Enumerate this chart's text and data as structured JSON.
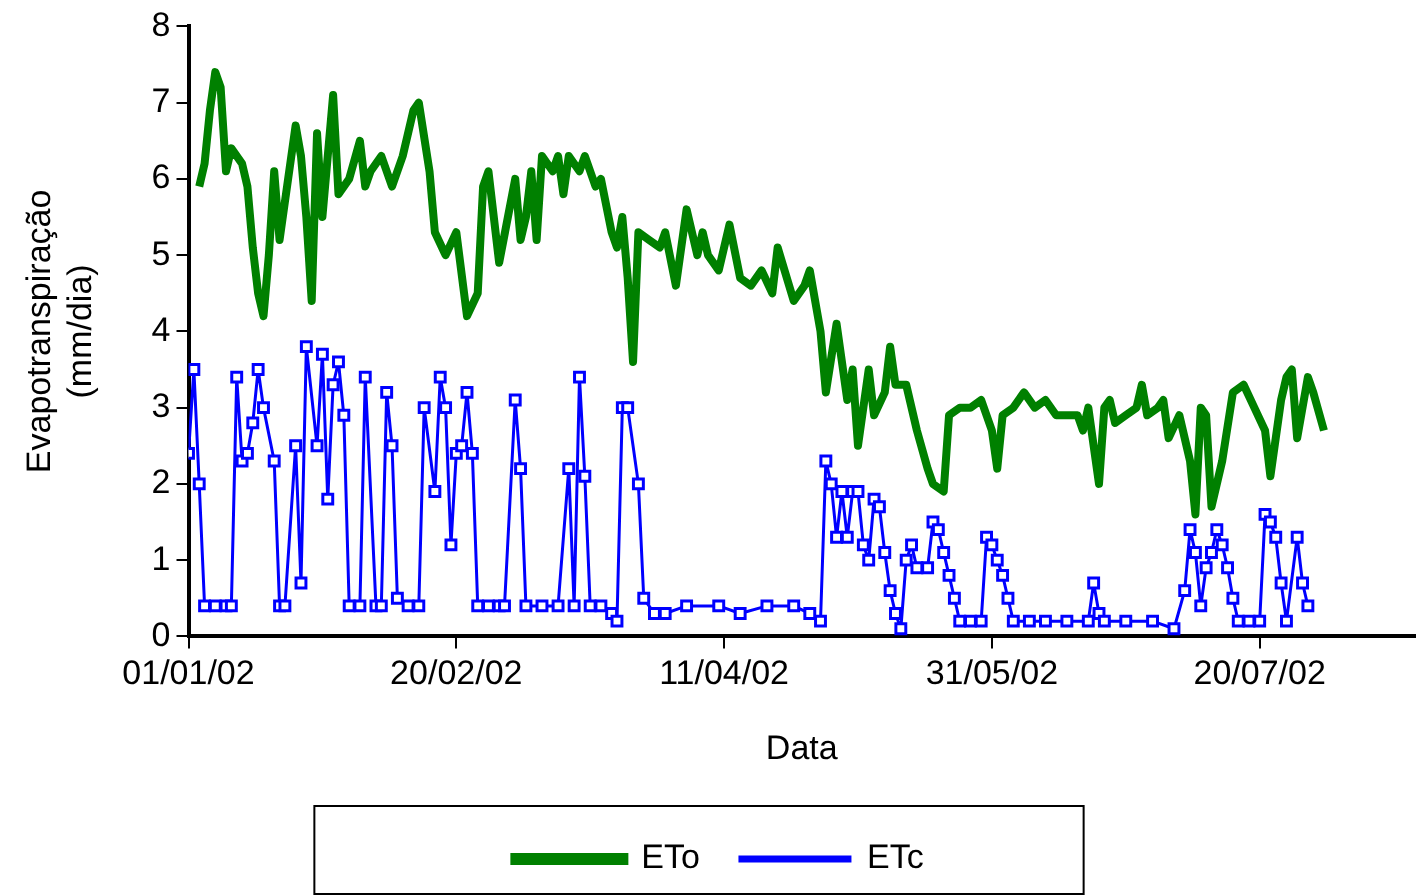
{
  "chart_data": {
    "type": "line",
    "xlabel": "Data",
    "ylabel": "Evapotranspiração (mm/dia)",
    "xlim": [
      "2002-01-01",
      "2002-08-18"
    ],
    "xticks": [
      {
        "value": "2002-01-01",
        "label": "01/01/02"
      },
      {
        "value": "2002-02-20",
        "label": "20/02/02"
      },
      {
        "value": "2002-04-11",
        "label": "11/04/02"
      },
      {
        "value": "2002-05-31",
        "label": "31/05/02"
      },
      {
        "value": "2002-07-20",
        "label": "20/07/02"
      }
    ],
    "ylim": [
      0,
      8
    ],
    "yticks": [
      0,
      1,
      2,
      3,
      4,
      5,
      6,
      7,
      8
    ],
    "grid": false,
    "legend": "bottom",
    "series": [
      {
        "name": "ETo",
        "color": "#008000",
        "marker": "none",
        "x": [
          "2002-01-03",
          "2002-01-04",
          "2002-01-05",
          "2002-01-06",
          "2002-01-07",
          "2002-01-08",
          "2002-01-09",
          "2002-01-11",
          "2002-01-12",
          "2002-01-13",
          "2002-01-14",
          "2002-01-15",
          "2002-01-16",
          "2002-01-17",
          "2002-01-18",
          "2002-01-19",
          "2002-01-21",
          "2002-01-22",
          "2002-01-23",
          "2002-01-24",
          "2002-01-25",
          "2002-01-26",
          "2002-01-28",
          "2002-01-29",
          "2002-01-31",
          "2002-02-02",
          "2002-02-03",
          "2002-02-04",
          "2002-02-06",
          "2002-02-08",
          "2002-02-10",
          "2002-02-12",
          "2002-02-13",
          "2002-02-15",
          "2002-02-16",
          "2002-02-18",
          "2002-02-20",
          "2002-02-22",
          "2002-02-24",
          "2002-02-25",
          "2002-02-26",
          "2002-02-28",
          "2002-03-03",
          "2002-03-04",
          "2002-03-05",
          "2002-03-06",
          "2002-03-07",
          "2002-03-08",
          "2002-03-10",
          "2002-03-11",
          "2002-03-12",
          "2002-03-13",
          "2002-03-15",
          "2002-03-16",
          "2002-03-18",
          "2002-03-19",
          "2002-03-21",
          "2002-03-22",
          "2002-03-23",
          "2002-03-24",
          "2002-03-25",
          "2002-03-26",
          "2002-03-28",
          "2002-03-30",
          "2002-03-31",
          "2002-04-02",
          "2002-04-04",
          "2002-04-06",
          "2002-04-07",
          "2002-04-08",
          "2002-04-10",
          "2002-04-12",
          "2002-04-14",
          "2002-04-16",
          "2002-04-18",
          "2002-04-20",
          "2002-04-21",
          "2002-04-24",
          "2002-04-26",
          "2002-04-27",
          "2002-04-29",
          "2002-04-30",
          "2002-05-02",
          "2002-05-04",
          "2002-05-05",
          "2002-05-06",
          "2002-05-08",
          "2002-05-09",
          "2002-05-11",
          "2002-05-12",
          "2002-05-13",
          "2002-05-15",
          "2002-05-17",
          "2002-05-19",
          "2002-05-20",
          "2002-05-22",
          "2002-05-23",
          "2002-05-25",
          "2002-05-27",
          "2002-05-29",
          "2002-05-31",
          "2002-06-01",
          "2002-06-02",
          "2002-06-04",
          "2002-06-06",
          "2002-06-08",
          "2002-06-10",
          "2002-06-12",
          "2002-06-14",
          "2002-06-16",
          "2002-06-17",
          "2002-06-18",
          "2002-06-20",
          "2002-06-21",
          "2002-06-22",
          "2002-06-23",
          "2002-06-25",
          "2002-06-27",
          "2002-06-28",
          "2002-06-29",
          "2002-07-01",
          "2002-07-02",
          "2002-07-03",
          "2002-07-05",
          "2002-07-07",
          "2002-07-08",
          "2002-07-09",
          "2002-07-10",
          "2002-07-11",
          "2002-07-13",
          "2002-07-15",
          "2002-07-17",
          "2002-07-19",
          "2002-07-21",
          "2002-07-22",
          "2002-07-24",
          "2002-07-25",
          "2002-07-26",
          "2002-07-27",
          "2002-07-29",
          "2002-07-30",
          "2002-08-01"
        ],
        "values": [
          5.9,
          6.2,
          6.9,
          7.4,
          7.2,
          6.1,
          6.4,
          6.2,
          5.9,
          5.1,
          4.5,
          4.2,
          5.0,
          6.1,
          5.2,
          5.7,
          6.7,
          6.3,
          5.5,
          4.4,
          6.6,
          5.5,
          7.1,
          5.8,
          6.0,
          6.5,
          5.9,
          6.1,
          6.3,
          5.9,
          6.3,
          6.9,
          7.0,
          6.1,
          5.3,
          5.0,
          5.3,
          4.2,
          4.5,
          5.9,
          6.1,
          4.9,
          6.0,
          5.2,
          5.5,
          6.1,
          5.2,
          6.3,
          6.1,
          6.3,
          5.8,
          6.3,
          6.1,
          6.3,
          5.9,
          6.0,
          5.3,
          5.1,
          5.5,
          4.7,
          3.6,
          5.3,
          5.2,
          5.1,
          5.3,
          4.6,
          5.6,
          5.0,
          5.3,
          5.0,
          4.8,
          5.4,
          4.7,
          4.6,
          4.8,
          4.5,
          5.1,
          4.4,
          4.6,
          4.8,
          4.0,
          3.2,
          4.1,
          3.1,
          3.5,
          2.5,
          3.5,
          2.9,
          3.2,
          3.8,
          3.3,
          3.3,
          2.7,
          2.2,
          2.0,
          1.9,
          2.9,
          3.0,
          3.0,
          3.1,
          2.7,
          2.2,
          2.9,
          3.0,
          3.2,
          3.0,
          3.1,
          2.9,
          2.9,
          2.9,
          2.7,
          3.0,
          2.0,
          3.0,
          3.1,
          2.8,
          2.9,
          3.0,
          3.3,
          2.9,
          3.0,
          3.1,
          2.6,
          2.9,
          2.3,
          1.6,
          3.0,
          2.9,
          1.7,
          2.3,
          3.2,
          3.3,
          3.0,
          2.7,
          2.1,
          3.1,
          3.4,
          3.5,
          2.6,
          3.4,
          3.2,
          2.7
        ]
      },
      {
        "name": "ETc",
        "color": "#0000ff",
        "marker": "square",
        "x": [
          "2002-01-01",
          "2002-01-02",
          "2002-01-03",
          "2002-01-04",
          "2002-01-06",
          "2002-01-08",
          "2002-01-09",
          "2002-01-10",
          "2002-01-11",
          "2002-01-12",
          "2002-01-13",
          "2002-01-14",
          "2002-01-15",
          "2002-01-17",
          "2002-01-18",
          "2002-01-19",
          "2002-01-21",
          "2002-01-22",
          "2002-01-23",
          "2002-01-25",
          "2002-01-26",
          "2002-01-27",
          "2002-01-28",
          "2002-01-29",
          "2002-01-30",
          "2002-01-31",
          "2002-02-02",
          "2002-02-03",
          "2002-02-05",
          "2002-02-06",
          "2002-02-07",
          "2002-02-08",
          "2002-02-09",
          "2002-02-11",
          "2002-02-13",
          "2002-02-14",
          "2002-02-16",
          "2002-02-17",
          "2002-02-18",
          "2002-02-19",
          "2002-02-20",
          "2002-02-21",
          "2002-02-22",
          "2002-02-23",
          "2002-02-24",
          "2002-02-26",
          "2002-02-28",
          "2002-03-01",
          "2002-03-03",
          "2002-03-04",
          "2002-03-05",
          "2002-03-08",
          "2002-03-11",
          "2002-03-13",
          "2002-03-14",
          "2002-03-15",
          "2002-03-16",
          "2002-03-17",
          "2002-03-19",
          "2002-03-21",
          "2002-03-22",
          "2002-03-23",
          "2002-03-24",
          "2002-03-26",
          "2002-03-27",
          "2002-03-29",
          "2002-03-31",
          "2002-04-04",
          "2002-04-10",
          "2002-04-14",
          "2002-04-19",
          "2002-04-24",
          "2002-04-27",
          "2002-04-29",
          "2002-04-30",
          "2002-05-01",
          "2002-05-02",
          "2002-05-03",
          "2002-05-04",
          "2002-05-05",
          "2002-05-06",
          "2002-05-07",
          "2002-05-08",
          "2002-05-09",
          "2002-05-10",
          "2002-05-11",
          "2002-05-12",
          "2002-05-13",
          "2002-05-14",
          "2002-05-15",
          "2002-05-16",
          "2002-05-17",
          "2002-05-19",
          "2002-05-20",
          "2002-05-21",
          "2002-05-22",
          "2002-05-23",
          "2002-05-24",
          "2002-05-25",
          "2002-05-27",
          "2002-05-29",
          "2002-05-30",
          "2002-05-31",
          "2002-06-01",
          "2002-06-02",
          "2002-06-03",
          "2002-06-04",
          "2002-06-07",
          "2002-06-10",
          "2002-06-14",
          "2002-06-18",
          "2002-06-19",
          "2002-06-20",
          "2002-06-21",
          "2002-06-25",
          "2002-06-30",
          "2002-07-04",
          "2002-07-06",
          "2002-07-07",
          "2002-07-08",
          "2002-07-09",
          "2002-07-10",
          "2002-07-11",
          "2002-07-12",
          "2002-07-13",
          "2002-07-14",
          "2002-07-15",
          "2002-07-16",
          "2002-07-18",
          "2002-07-20",
          "2002-07-21",
          "2002-07-22",
          "2002-07-23",
          "2002-07-24",
          "2002-07-25",
          "2002-07-27",
          "2002-07-28",
          "2002-07-29"
        ],
        "values": [
          2.4,
          3.5,
          2.0,
          0.4,
          0.4,
          0.4,
          0.4,
          3.4,
          2.3,
          2.4,
          2.8,
          3.5,
          3.0,
          2.3,
          0.4,
          0.4,
          2.5,
          0.7,
          3.8,
          2.5,
          3.7,
          1.8,
          3.3,
          3.6,
          2.9,
          0.4,
          0.4,
          3.4,
          0.4,
          0.4,
          3.2,
          2.5,
          0.5,
          0.4,
          0.4,
          3.0,
          1.9,
          3.4,
          3.0,
          1.2,
          2.4,
          2.5,
          3.2,
          2.4,
          0.4,
          0.4,
          0.4,
          0.4,
          3.1,
          2.2,
          0.4,
          0.4,
          0.4,
          2.2,
          0.4,
          3.4,
          2.1,
          0.4,
          0.4,
          0.3,
          0.2,
          3.0,
          3.0,
          2.0,
          0.5,
          0.3,
          0.3,
          0.4,
          0.4,
          0.3,
          0.4,
          0.4,
          0.3,
          0.2,
          2.3,
          2.0,
          1.3,
          1.9,
          1.3,
          1.9,
          1.9,
          1.2,
          1.0,
          1.8,
          1.7,
          1.1,
          0.6,
          0.3,
          0.1,
          1.0,
          1.2,
          0.9,
          0.9,
          1.5,
          1.4,
          1.1,
          0.8,
          0.5,
          0.2,
          0.2,
          0.2,
          1.3,
          1.2,
          1.0,
          0.8,
          0.5,
          0.2,
          0.2,
          0.2,
          0.2,
          0.2,
          0.7,
          0.3,
          0.2,
          0.2,
          0.2,
          0.1,
          0.6,
          1.4,
          1.1,
          0.4,
          0.9,
          1.1,
          1.4,
          1.2,
          0.9,
          0.5,
          0.2,
          0.2,
          0.2,
          1.6,
          1.5,
          1.3,
          0.7,
          0.2,
          1.3,
          0.7,
          0.4
        ]
      }
    ]
  }
}
